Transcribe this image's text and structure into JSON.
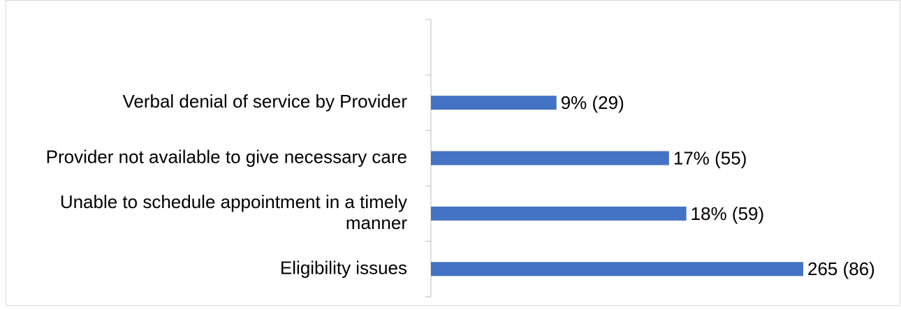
{
  "chart_data": {
    "type": "bar",
    "orientation": "horizontal",
    "categories": [
      null,
      "Verbal denial of service by Provider",
      "Provider not available to give necessary care",
      "Unable to schedule appointment in a timely manner",
      "Eligibility issues"
    ],
    "values": [
      null,
      29,
      55,
      59,
      86
    ],
    "value_labels": [
      null,
      "9% (29)",
      "17% (55)",
      "18% (59)",
      "265 (86)"
    ],
    "color": "#4472c4"
  }
}
